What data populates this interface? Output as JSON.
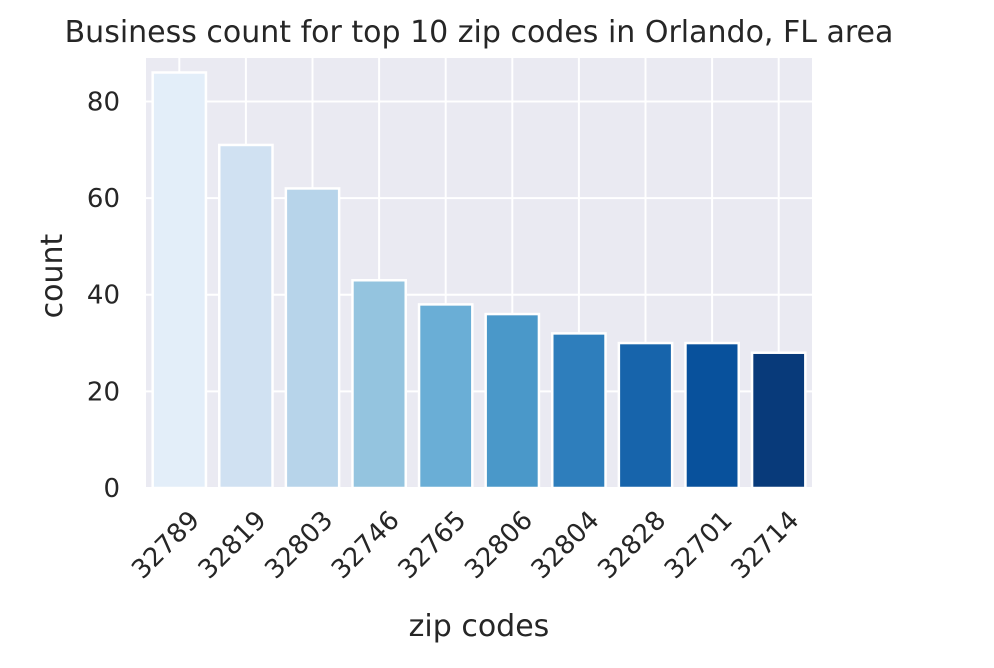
{
  "chart_data": {
    "type": "bar",
    "title": "Business count for top 10 zip codes in Orlando, FL area",
    "xlabel": "zip codes",
    "ylabel": "count",
    "categories": [
      "32789",
      "32819",
      "32803",
      "32746",
      "32765",
      "32806",
      "32804",
      "32828",
      "32701",
      "32714"
    ],
    "values": [
      86,
      71,
      62,
      43,
      38,
      36,
      32,
      30,
      30,
      28
    ],
    "yticks": [
      0,
      20,
      40,
      60,
      80
    ],
    "ylim": [
      0,
      89
    ],
    "grid": true,
    "legend": "none",
    "colors": [
      "#e3eef9",
      "#d0e1f2",
      "#b7d4ea",
      "#94c4df",
      "#6aaed6",
      "#4a98c9",
      "#2e7ebc",
      "#1764ab",
      "#08519c",
      "#083a7a"
    ],
    "background_color": "#eaeaf2",
    "grid_color": "#ffffff",
    "bar_edge_color": "#ffffff"
  }
}
